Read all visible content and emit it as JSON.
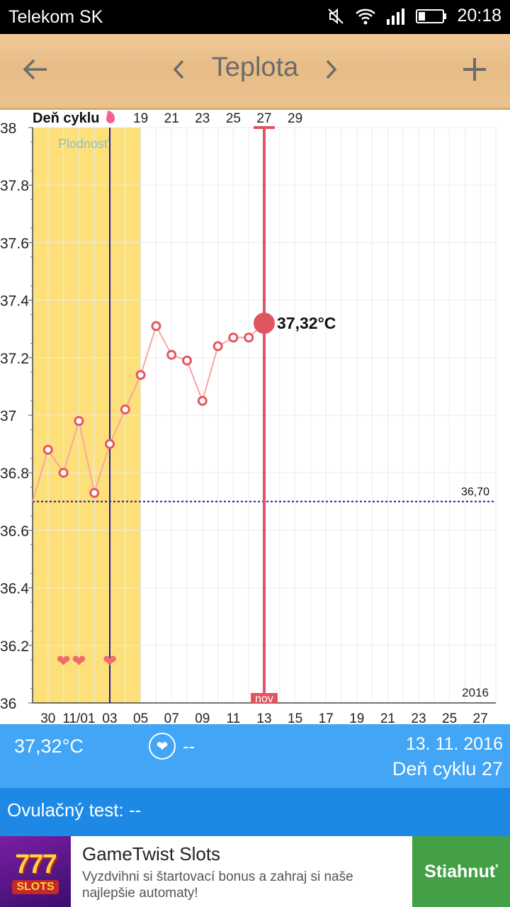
{
  "status_bar": {
    "carrier": "Telekom SK",
    "time": "20:18",
    "icons": [
      "mute-icon",
      "wifi-icon",
      "signal-icon",
      "battery-icon"
    ]
  },
  "toolbar": {
    "title": "Teplota",
    "back_icon": "arrow-left-icon",
    "prev_icon": "chevron-left-icon",
    "next_icon": "chevron-right-icon",
    "add_icon": "plus-icon"
  },
  "chart_data": {
    "type": "line",
    "cycle_label": "Deň cyklu",
    "top_ticks": [
      "19",
      "21",
      "23",
      "25",
      "27",
      "29"
    ],
    "fertile_label": "Plodnosť",
    "x_tick_labels": [
      "30",
      "11/01",
      "03",
      "05",
      "07",
      "09",
      "11",
      "13",
      "15",
      "17",
      "19",
      "21",
      "23",
      "25",
      "27"
    ],
    "year_label": "2016",
    "month_label": "nov",
    "ylim": [
      36,
      38
    ],
    "y_ticks": [
      "36",
      "36.2",
      "36.4",
      "36.6",
      "36.8",
      "37",
      "37.2",
      "37.4",
      "37.6",
      "37.8",
      "38"
    ],
    "series": [
      {
        "dates": [
          "2016-10-29",
          "2016-10-30",
          "2016-10-31",
          "2016-11-01",
          "2016-11-02",
          "2016-11-03",
          "2016-11-04",
          "2016-11-05",
          "2016-11-06",
          "2016-11-07",
          "2016-11-08",
          "2016-11-09",
          "2016-11-10",
          "2016-11-11",
          "2016-11-12",
          "2016-11-13"
        ],
        "values": [
          36.7,
          36.88,
          36.8,
          36.98,
          36.73,
          36.9,
          37.02,
          37.14,
          37.31,
          37.21,
          37.19,
          37.05,
          37.24,
          37.27,
          37.27,
          37.32
        ]
      }
    ],
    "coverline": {
      "value": 36.7,
      "label": "36,70"
    },
    "ovulation_date": "2016-11-03",
    "selected": {
      "date": "2016-11-13",
      "label": "37,32°C"
    },
    "heart_dates": [
      "2016-10-31",
      "2016-11-01",
      "2016-11-03"
    ],
    "colors": {
      "fertile": "#fde07a",
      "line": "#f7a5a5",
      "point": "#e5585f",
      "selected": "#e0555f",
      "coverline": "#1a1aa6",
      "ovulation": "#1a1aa6",
      "heart": "#f26b6b",
      "grid": "#ebebeb"
    }
  },
  "info": {
    "temperature": "37,32°C",
    "heart_icon": "heart-icon",
    "intercourse": "--",
    "date": "13. 11. 2016",
    "cycle_day": "Deň cyklu 27"
  },
  "ovulation_test": {
    "text": "Ovulačný test: --"
  },
  "ad": {
    "title": "GameTwist Slots",
    "description": "Vyzdvihni si štartovací bonus a zahraj si naše najlepšie automaty!",
    "cta": "Stiahnuť",
    "logo_text": "777",
    "logo_sub": "SLOTS",
    "logo_icon": "slots-logo-icon"
  }
}
